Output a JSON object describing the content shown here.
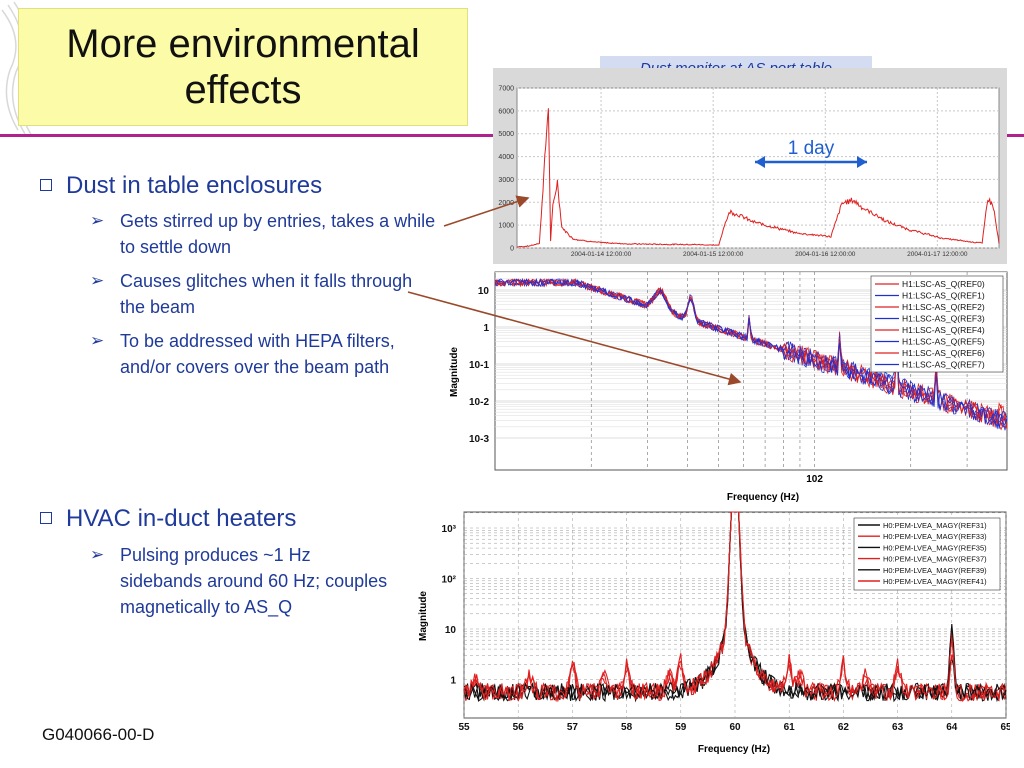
{
  "slide": {
    "title": "More environmental\neffects",
    "footer": "G040066-00-D",
    "bullets": [
      {
        "text": "Dust in table enclosures",
        "subs": [
          "Gets stirred up by entries, takes a while to settle down",
          "Causes glitches when it falls through the beam",
          "To be addressed with HEPA filters, and/or covers over the beam path"
        ]
      },
      {
        "text": "HVAC in-duct heaters",
        "subs": [
          "Pulsing produces ~1 Hz sidebands around 60 Hz; couples magnetically to AS_Q"
        ]
      }
    ],
    "dust_caption": "Dust monitor at AS port table",
    "day_label": "1 day",
    "colors": {
      "title_bg": "#fbfba8",
      "accent_rule": "#b0208e",
      "text_blue": "#1f3a9a",
      "caption_bg": "#d4dcf2",
      "red": "#e02020",
      "blue": "#2030d0",
      "annotation_arrow": "#9a4a2a"
    }
  },
  "chart_data": [
    {
      "type": "line",
      "title": "",
      "yticks": [
        "0",
        "1000",
        "2000",
        "3000",
        "4000",
        "5000",
        "6000",
        "7000"
      ],
      "ylim": [
        0,
        7000
      ],
      "xticks": [
        "2004-01-14 12:00:00",
        "2004-01-15 12:00:00",
        "2004-01-16 12:00:00",
        "2004-01-17 12:00:00"
      ],
      "xlim_days": [
        0,
        4.3
      ],
      "series": [
        {
          "color": "#e02020",
          "x": [
            0,
            0.1,
            0.2,
            0.28,
            0.3,
            0.32,
            0.36,
            0.4,
            0.5,
            0.7,
            1.0,
            1.3,
            1.6,
            1.8,
            1.85,
            1.9,
            2.0,
            2.1,
            2.3,
            2.5,
            2.8,
            2.9,
            3.0,
            3.1,
            3.2,
            3.3,
            3.5,
            3.8,
            4.0,
            4.15,
            4.2,
            4.25,
            4.3
          ],
          "y": [
            50,
            80,
            200,
            6300,
            300,
            1800,
            2900,
            900,
            400,
            250,
            180,
            160,
            150,
            120,
            1000,
            1600,
            1400,
            1150,
            900,
            650,
            500,
            1950,
            2100,
            1700,
            1450,
            1150,
            800,
            420,
            300,
            220,
            2200,
            1800,
            200
          ]
        }
      ]
    },
    {
      "type": "line",
      "xlabel": "Frequency (Hz)",
      "ylabel": "Magnitude",
      "yticks": [
        "10",
        "1",
        "10-1",
        "10-2",
        "10-3"
      ],
      "xtick_label": "102",
      "legend": [
        "H1:LSC-AS_Q(REF0)",
        "H1:LSC-AS_Q(REF1)",
        "H1:LSC-AS_Q(REF2)",
        "H1:LSC-AS_Q(REF3)",
        "H1:LSC-AS_Q(REF4)",
        "H1:LSC-AS_Q(REF5)",
        "H1:LSC-AS_Q(REF6)",
        "H1:LSC-AS_Q(REF7)"
      ],
      "legend_colors": [
        "#e02020",
        "#2030d0",
        "#e02020",
        "#2030d0",
        "#e02020",
        "#2030d0",
        "#e02020",
        "#2030d0"
      ],
      "legend_position": "top-right"
    },
    {
      "type": "line",
      "xlabel": "Frequency (Hz)",
      "ylabel": "Magnitude",
      "yticks": [
        "10³",
        "10²",
        "10",
        "1"
      ],
      "xticks": [
        "55",
        "56",
        "57",
        "58",
        "59",
        "60",
        "61",
        "62",
        "63",
        "64",
        "65"
      ],
      "xlim": [
        55,
        65
      ],
      "legend": [
        "H0:PEM-LVEA_MAGY(REF31)",
        "H0:PEM-LVEA_MAGY(REF33)",
        "H0:PEM-LVEA_MAGY(REF35)",
        "H0:PEM-LVEA_MAGY(REF37)",
        "H0:PEM-LVEA_MAGY(REF39)",
        "H0:PEM-LVEA_MAGY(REF41)"
      ],
      "legend_colors": [
        "#111111",
        "#e02020",
        "#111111",
        "#e02020",
        "#111111",
        "#e02020"
      ],
      "legend_position": "top-right"
    }
  ]
}
